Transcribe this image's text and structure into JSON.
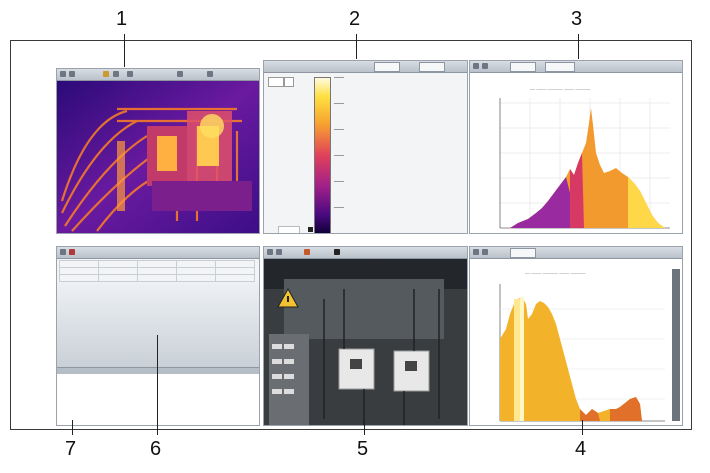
{
  "callouts": [
    {
      "id": "1",
      "label": "1"
    },
    {
      "id": "2",
      "label": "2"
    },
    {
      "id": "3",
      "label": "3"
    },
    {
      "id": "4",
      "label": "4"
    },
    {
      "id": "5",
      "label": "5"
    },
    {
      "id": "6",
      "label": "6"
    },
    {
      "id": "7",
      "label": "7"
    }
  ],
  "colors": {
    "frame": "#3a3a3a",
    "panel_bg": "#f2f4f6",
    "thermal_low": "#3a0a6e",
    "thermal_mid": "#d4235a",
    "thermal_high": "#ffe040"
  },
  "icons": {
    "toolbar": [
      "pointer-icon",
      "zoom-icon",
      "palette-icon",
      "measure-icon",
      "settings-icon"
    ]
  }
}
